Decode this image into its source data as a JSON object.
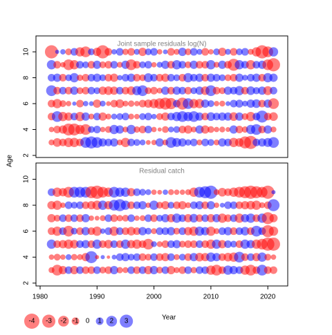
{
  "chart_data": [
    {
      "type": "bubble",
      "title": "Joint sample residuals log(N)",
      "x": [
        1982,
        1983,
        1984,
        1985,
        1986,
        1987,
        1988,
        1989,
        1990,
        1991,
        1992,
        1993,
        1994,
        1995,
        1996,
        1997,
        1998,
        1999,
        2000,
        2001,
        2002,
        2003,
        2004,
        2005,
        2006,
        2007,
        2008,
        2009,
        2010,
        2011,
        2012,
        2013,
        2014,
        2015,
        2016,
        2017,
        2018,
        2019,
        2020,
        2021
      ],
      "ages": [
        10,
        9,
        8,
        7,
        6,
        5,
        4,
        3
      ],
      "values": [
        [
          -3,
          0.3,
          0.5,
          -0.8,
          1,
          -1.5,
          -2,
          0.8,
          -1.2,
          -3,
          -1,
          0.5,
          1,
          -0.7,
          -1,
          0.6,
          -1.2,
          0.8,
          1,
          -0.5,
          0.4,
          -1,
          -0.6,
          1.2,
          -0.8,
          1,
          0.6,
          -1,
          -0.5,
          0.8,
          -1.2,
          0.6,
          -1,
          0.8,
          1,
          -0.6,
          -1.5,
          -3,
          -2,
          1.5
        ],
        [
          1.5,
          -1,
          -0.5,
          -2,
          -1.5,
          1,
          0.8,
          -1,
          1.2,
          -0.8,
          -1,
          1,
          -0.6,
          1.2,
          -2,
          -1,
          0.8,
          1,
          -0.5,
          0.6,
          1.2,
          -1,
          1.5,
          1,
          -0.8,
          1.2,
          -1,
          -1,
          1.5,
          -0.6,
          1.2,
          -1,
          -2.5,
          1.5,
          1,
          -1.5,
          1,
          1.2,
          -2,
          -3
        ],
        [
          1,
          1.2,
          -1,
          0.8,
          1.5,
          -0.7,
          -1,
          1,
          1.2,
          0.8,
          -1,
          -1.2,
          0.5,
          1,
          1.2,
          -1,
          -0.8,
          1.4,
          1,
          -1,
          -1.2,
          1,
          0.8,
          -1,
          1.5,
          1,
          1.2,
          -1,
          1.2,
          1,
          0.8,
          -0.8,
          -1,
          1.2,
          0.6,
          1,
          1.2,
          -1,
          1.5,
          1.2
        ],
        [
          2,
          -1,
          1,
          -1,
          1.2,
          -0.8,
          -1,
          1,
          0.8,
          -1.2,
          -1.3,
          -1.2,
          1,
          -1,
          -1.3,
          1.5,
          2,
          -0.8,
          -1,
          -0.6,
          1.2,
          -1,
          1.2,
          1,
          -1,
          0.8,
          1.2,
          -1.3,
          2,
          -1,
          -0.8,
          1.2,
          1,
          1.5,
          -1,
          1.3,
          0.9,
          1.2,
          -1.4,
          1
        ],
        [
          -1,
          -1.5,
          -0.8,
          -0.5,
          0.3,
          -1,
          0.5,
          0.4,
          -1.2,
          0.6,
          -0.4,
          -1,
          -1.3,
          -0.6,
          -0.7,
          -0.5,
          -1,
          -1.2,
          -1.5,
          -2,
          -2.5,
          -2.2,
          1,
          -2.5,
          2,
          -1.5,
          -1.5,
          1.2,
          0.8,
          -0.5,
          -0.6,
          0.4,
          1,
          1.1,
          0.6,
          1.2,
          1.3,
          -1,
          1.2,
          -2
        ],
        [
          -1,
          2,
          -1.5,
          -1.2,
          1,
          -1.5,
          1.2,
          -0.6,
          1,
          -1.2,
          -0.6,
          0.6,
          0.8,
          1,
          -0.6,
          -0.5,
          0.8,
          1,
          0.5,
          -0.8,
          -1.2,
          1,
          1.5,
          2,
          1.5,
          2,
          1.2,
          -1,
          1.3,
          1,
          1.2,
          1.2,
          -1.3,
          1.2,
          -0.8,
          -1.5,
          1,
          2.5,
          -1,
          -1.3
        ],
        [
          -0.5,
          -1,
          -1.2,
          -2.5,
          -2.5,
          -1.5,
          -2,
          0.8,
          1,
          -0.5,
          -0.8,
          1.5,
          1.2,
          -0.6,
          1.5,
          -0.7,
          -1,
          1,
          -0.5,
          -0.3,
          -0.8,
          0.6,
          0.8,
          -1,
          -1.2,
          -0.6,
          1.2,
          -1.2,
          -0.8,
          -0.5,
          -0.6,
          -0.4,
          1.2,
          -1,
          -0.7,
          1.5,
          2,
          -1,
          1.2,
          -0.6
        ],
        [
          -0.6,
          -1.3,
          -1,
          -1.5,
          -1.5,
          -1,
          2,
          2.5,
          2,
          1.2,
          1,
          1.2,
          -0.6,
          -1.5,
          1,
          0.8,
          0.6,
          -0.4,
          -0.5,
          1.2,
          -0.6,
          2,
          1.4,
          1.2,
          0.7,
          1,
          -0.6,
          1,
          0.8,
          -0.6,
          1.2,
          1,
          -1.5,
          -1.3,
          -2.5,
          -3,
          1,
          1.2,
          1.4,
          2
        ]
      ],
      "xlim": [
        1979.27,
        2023.5
      ],
      "ylim": [
        1.84,
        11.23
      ],
      "yticks": [
        2,
        4,
        6,
        8,
        10
      ],
      "colors": {
        "negative": "#ff0000",
        "positive": "#0000ff"
      }
    },
    {
      "type": "bubble",
      "title": "Residual catch",
      "x": [
        1982,
        1983,
        1984,
        1985,
        1986,
        1987,
        1988,
        1989,
        1990,
        1991,
        1992,
        1993,
        1994,
        1995,
        1996,
        1997,
        1998,
        1999,
        2000,
        2001,
        2002,
        2003,
        2004,
        2005,
        2006,
        2007,
        2008,
        2009,
        2010,
        2011,
        2012,
        2013,
        2014,
        2015,
        2016,
        2017,
        2018,
        2019,
        2020,
        2021
      ],
      "ages": [
        9,
        8,
        7,
        6,
        5,
        4,
        3
      ],
      "values": [
        [
          1,
          -1.5,
          -1.2,
          -2,
          2,
          2,
          2,
          -2.5,
          -3,
          -2,
          -1.5,
          2,
          1.5,
          1.5,
          -1.2,
          1,
          0.8,
          0.6,
          -0.5,
          -0.4,
          0.5,
          -0.6,
          -0.5,
          -0.5,
          -0.6,
          -1.5,
          2,
          2.5,
          3,
          -0.6,
          -1.3,
          -1,
          -1.5,
          -2,
          -2.5,
          -3,
          -2.5,
          -2,
          -3,
          0.3
        ],
        [
          -1.2,
          -1.5,
          -0.5,
          1,
          0.8,
          1,
          -1,
          -1.2,
          -1.5,
          1.5,
          -1.2,
          2,
          2.5,
          1.5,
          -1,
          1,
          1.2,
          -0.5,
          1.5,
          -0.8,
          -1.2,
          0.8,
          -1,
          -1.2,
          -0.6,
          1,
          1.2,
          -1,
          1.2,
          -0.5,
          0.4,
          1,
          1,
          -1,
          -1.2,
          -1.3,
          -1.5,
          -0.6,
          -1,
          2.5
        ],
        [
          -1.2,
          -0.8,
          1,
          -1,
          1,
          -1,
          1.2,
          -0.5,
          -0.4,
          -0.6,
          1,
          -1,
          -0.7,
          -0.8,
          1,
          -0.5,
          -0.6,
          1,
          -1,
          0.8,
          1.2,
          -1.2,
          1.5,
          1,
          -1.2,
          1.3,
          -1,
          1,
          -1.2,
          1.2,
          -1.5,
          -1,
          1,
          -1.5,
          1.2,
          1.5,
          -1,
          1.5,
          -2.5,
          -1.2
        ],
        [
          -1,
          -1.5,
          1,
          -2,
          0.8,
          -1,
          1.2,
          -1,
          -1.5,
          0.5,
          1,
          -1.5,
          1,
          -1,
          -1.3,
          -1,
          1.2,
          0.8,
          -0.6,
          1,
          1,
          1.2,
          -0.8,
          1,
          -1.2,
          -1.5,
          1.5,
          1.2,
          -1.5,
          -0.6,
          1,
          1.2,
          -1,
          1,
          1.3,
          -1,
          2,
          1,
          -2.5,
          -1.5
        ],
        [
          1.5,
          -1,
          -1.2,
          -1.5,
          -1.3,
          1,
          1.2,
          -1,
          1.5,
          -1,
          -1.3,
          1,
          -1,
          1.5,
          -1.2,
          -1.5,
          -1,
          -2,
          0.6,
          -0.6,
          -1,
          1,
          1.2,
          -0.8,
          -1,
          -1,
          1,
          -1,
          -1.5,
          1.5,
          -1.2,
          1,
          0.8,
          -1,
          1.5,
          1.2,
          -1.5,
          -2,
          -3,
          -3
        ],
        [
          -0.5,
          -0.8,
          -0.5,
          0.6,
          -0.7,
          -0.6,
          -1.2,
          2.5,
          -0.3,
          0.3,
          -0.2,
          0.4,
          1,
          1.2,
          0.8,
          1,
          -1,
          -0.8,
          1,
          -1,
          -1.2,
          1,
          -0.6,
          0.8,
          -1,
          1.2,
          -1.3,
          -1.2,
          1.5,
          1.2,
          -1,
          -1.3,
          -1.5,
          2,
          -1,
          1,
          -1.2,
          1.5,
          -0.8,
          -0.5
        ],
        [
          -0.6,
          -2,
          -1.2,
          1,
          -1.2,
          1,
          -1,
          -1,
          1,
          -0.8,
          -1,
          1.2,
          -0.7,
          -0.6,
          1,
          -1,
          1,
          -1.2,
          1.2,
          -0.8,
          1,
          -1.2,
          -0.6,
          -1,
          1,
          -0.7,
          1,
          1,
          -1.5,
          -2,
          -1,
          1.5,
          1.2,
          1,
          -1.5,
          -2,
          -1,
          2,
          -1,
          -1
        ]
      ],
      "xlim": [
        1979.27,
        2023.5
      ],
      "ylim": [
        1.78,
        11.25
      ],
      "yticks": [
        2,
        4,
        6,
        8,
        10
      ],
      "xticks": [
        1980,
        1990,
        2000,
        2010,
        2020
      ],
      "colors": {
        "negative": "#ff0000",
        "positive": "#0000ff"
      }
    }
  ],
  "xlabel": "Year",
  "ylabel": "Age",
  "legend": {
    "values": [
      -4,
      -3,
      -2,
      -1,
      0,
      1,
      2,
      3
    ]
  }
}
